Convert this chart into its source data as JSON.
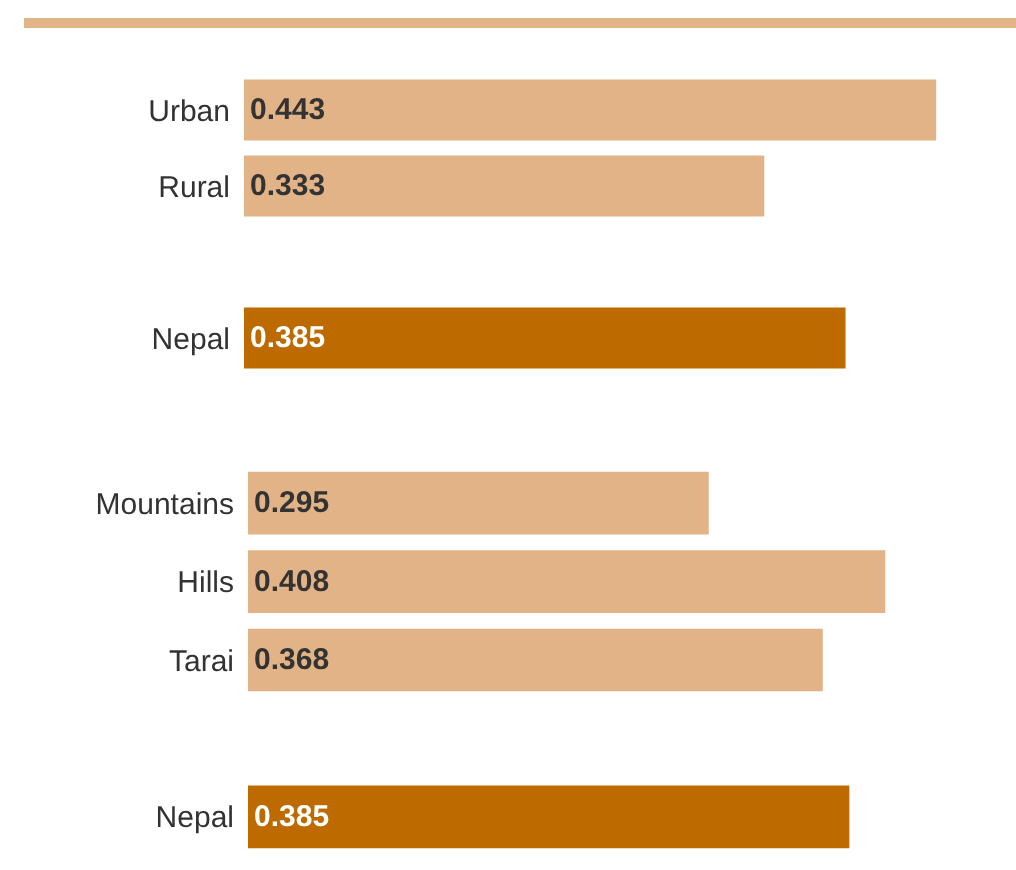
{
  "chart_data": [
    {
      "type": "bar",
      "orientation": "horizontal",
      "categories": [
        "Urban",
        "Rural",
        null,
        "Nepal"
      ],
      "values": [
        0.443,
        0.333,
        null,
        0.385
      ],
      "colors": [
        "#e2b386",
        "#e2b386",
        "#e2b386",
        "#bd6a00"
      ],
      "data_labels": true,
      "grid": false,
      "legend": false,
      "tick_labels": "y"
    },
    {
      "type": "bar",
      "orientation": "horizontal",
      "categories": [
        "Mountains",
        "Hills",
        "Tarai",
        null,
        "Nepal"
      ],
      "values": [
        0.295,
        0.408,
        0.368,
        null,
        0.385
      ],
      "colors": [
        "#e2b386",
        "#e2b386",
        "#e2b386",
        "#e2b386",
        "#bd6a00"
      ],
      "data_labels": true,
      "grid": false,
      "legend": false,
      "tick_labels": "y"
    }
  ]
}
